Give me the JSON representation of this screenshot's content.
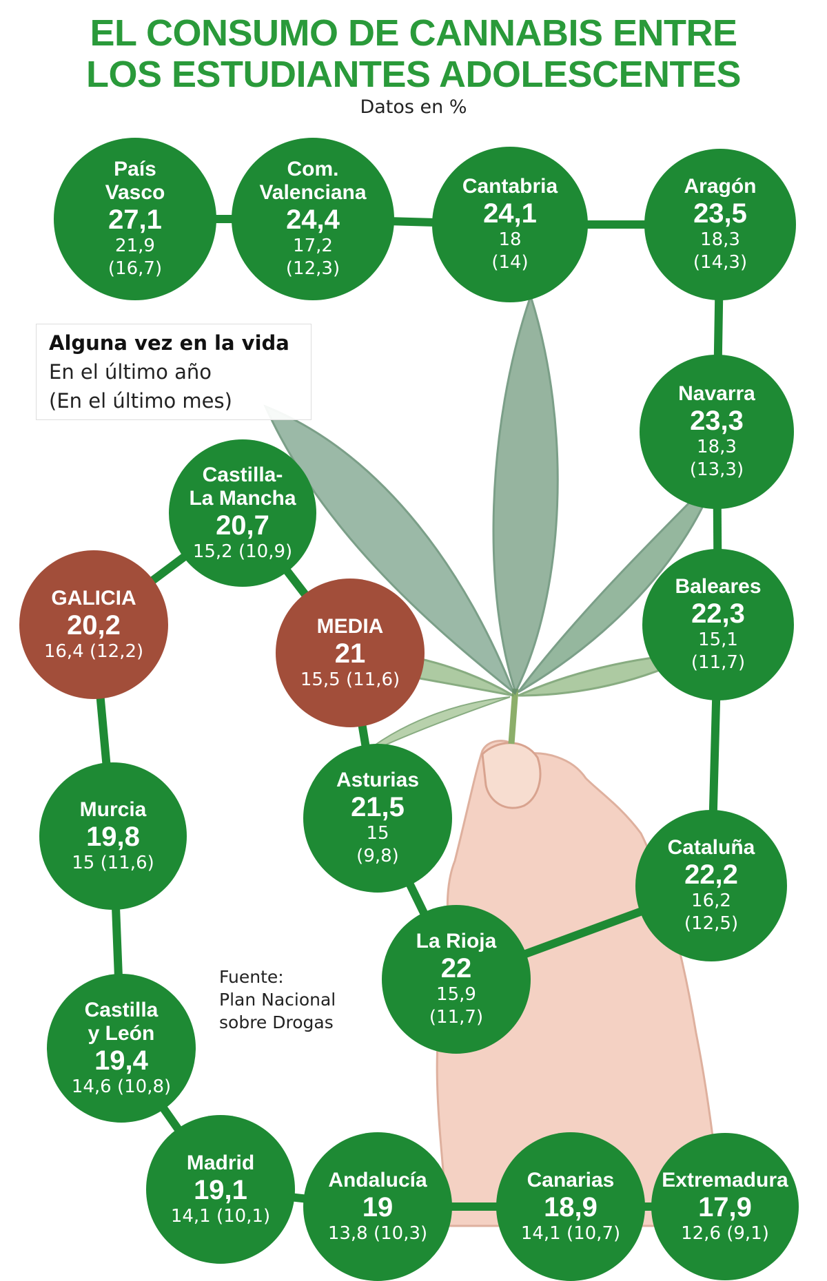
{
  "title": {
    "line1": "EL CONSUMO DE CANNABIS ENTRE",
    "line2": "LOS ESTUDIANTES ADOLESCENTES"
  },
  "subtitle": "Datos en %",
  "legend": {
    "line1": "Alguna vez en la vida",
    "line2": "En el último año",
    "line3": "(En el último mes)"
  },
  "source": {
    "line1": "Fuente:",
    "line2": "Plan Nacional",
    "line3": "sobre Drogas"
  },
  "colors": {
    "title": "#2a9a3a",
    "region": "#1e8a34",
    "highlight": "#a24e3a",
    "connector": "#1e8a34"
  },
  "chart_data": {
    "type": "table",
    "columns": [
      "Alguna vez en la vida",
      "En el último año",
      "(En el último mes)"
    ],
    "regions": [
      {
        "name": "País Vasco",
        "name_lines": [
          "País",
          "Vasco"
        ],
        "lifetime": "27,1",
        "last_year": "21,9",
        "last_month": "(16,7)",
        "highlight": false
      },
      {
        "name": "Com. Valenciana",
        "name_lines": [
          "Com.",
          "Valenciana"
        ],
        "lifetime": "24,4",
        "last_year": "17,2",
        "last_month": "(12,3)",
        "highlight": false
      },
      {
        "name": "Cantabria",
        "name_lines": [
          "Cantabria"
        ],
        "lifetime": "24,1",
        "last_year": "18",
        "last_month": "(14)",
        "highlight": false
      },
      {
        "name": "Aragón",
        "name_lines": [
          "Aragón"
        ],
        "lifetime": "23,5",
        "last_year": "18,3",
        "last_month": "(14,3)",
        "highlight": false
      },
      {
        "name": "Navarra",
        "name_lines": [
          "Navarra"
        ],
        "lifetime": "23,3",
        "last_year": "18,3",
        "last_month": "(13,3)",
        "highlight": false
      },
      {
        "name": "Baleares",
        "name_lines": [
          "Baleares"
        ],
        "lifetime": "22,3",
        "last_year": "15,1",
        "last_month": "(11,7)",
        "highlight": false
      },
      {
        "name": "Cataluña",
        "name_lines": [
          "Cataluña"
        ],
        "lifetime": "22,2",
        "last_year": "16,2",
        "last_month": "(12,5)",
        "highlight": false
      },
      {
        "name": "La Rioja",
        "name_lines": [
          "La Rioja"
        ],
        "lifetime": "22",
        "last_year": "15,9",
        "last_month": "(11,7)",
        "highlight": false
      },
      {
        "name": "Asturias",
        "name_lines": [
          "Asturias"
        ],
        "lifetime": "21,5",
        "last_year": "15",
        "last_month": "(9,8)",
        "highlight": false
      },
      {
        "name": "MEDIA",
        "name_lines": [
          "MEDIA"
        ],
        "lifetime": "21",
        "last_year": "15,5",
        "last_month": "(11,6)",
        "highlight": true
      },
      {
        "name": "Castilla-La Mancha",
        "name_lines": [
          "Castilla-",
          "La Mancha"
        ],
        "lifetime": "20,7",
        "last_year": "15,2",
        "last_month": "(10,9)",
        "highlight": false
      },
      {
        "name": "GALICIA",
        "name_lines": [
          "GALICIA"
        ],
        "lifetime": "20,2",
        "last_year": "16,4",
        "last_month": "(12,2)",
        "highlight": true
      },
      {
        "name": "Murcia",
        "name_lines": [
          "Murcia"
        ],
        "lifetime": "19,8",
        "last_year": "15",
        "last_month": "(11,6)",
        "highlight": false
      },
      {
        "name": "Castilla y León",
        "name_lines": [
          "Castilla",
          "y León"
        ],
        "lifetime": "19,4",
        "last_year": "14,6",
        "last_month": "(10,8)",
        "highlight": false
      },
      {
        "name": "Madrid",
        "name_lines": [
          "Madrid"
        ],
        "lifetime": "19,1",
        "last_year": "14,1",
        "last_month": "(10,1)",
        "highlight": false
      },
      {
        "name": "Andalucía",
        "name_lines": [
          "Andalucía"
        ],
        "lifetime": "19",
        "last_year": "13,8",
        "last_month": "(10,3)",
        "highlight": false
      },
      {
        "name": "Canarias",
        "name_lines": [
          "Canarias"
        ],
        "lifetime": "18,9",
        "last_year": "14,1",
        "last_month": "(10,7)",
        "highlight": false
      },
      {
        "name": "Extremadura",
        "name_lines": [
          "Extremadura"
        ],
        "lifetime": "17,9",
        "last_year": "12,6",
        "last_month": "(9,1)",
        "highlight": false
      }
    ]
  }
}
